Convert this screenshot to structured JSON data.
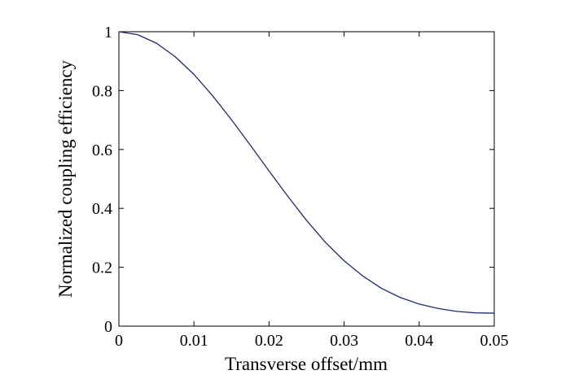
{
  "chart_data": {
    "type": "line",
    "title": "",
    "xlabel": "Transverse offset/mm",
    "ylabel": "Normalized coupling efficiency",
    "xlim": [
      0,
      0.05
    ],
    "ylim": [
      0,
      1
    ],
    "x_ticks": [
      "0",
      "0.01",
      "0.02",
      "0.03",
      "0.04",
      "0.05"
    ],
    "y_ticks": [
      "0",
      "0.2",
      "0.4",
      "0.6",
      "0.8",
      "1"
    ],
    "grid": false,
    "legend": "none",
    "series": [
      {
        "color": "#1f2a6b",
        "x": [
          0,
          0.0025,
          0.005,
          0.0075,
          0.01,
          0.0125,
          0.015,
          0.0175,
          0.02,
          0.0225,
          0.025,
          0.0275,
          0.03,
          0.0325,
          0.035,
          0.0375,
          0.04,
          0.0425,
          0.045,
          0.0475,
          0.05
        ],
        "y": [
          1.0,
          0.99,
          0.961,
          0.915,
          0.855,
          0.782,
          0.701,
          0.615,
          0.527,
          0.441,
          0.359,
          0.285,
          0.222,
          0.17,
          0.128,
          0.097,
          0.075,
          0.06,
          0.05,
          0.045,
          0.044
        ]
      }
    ]
  }
}
